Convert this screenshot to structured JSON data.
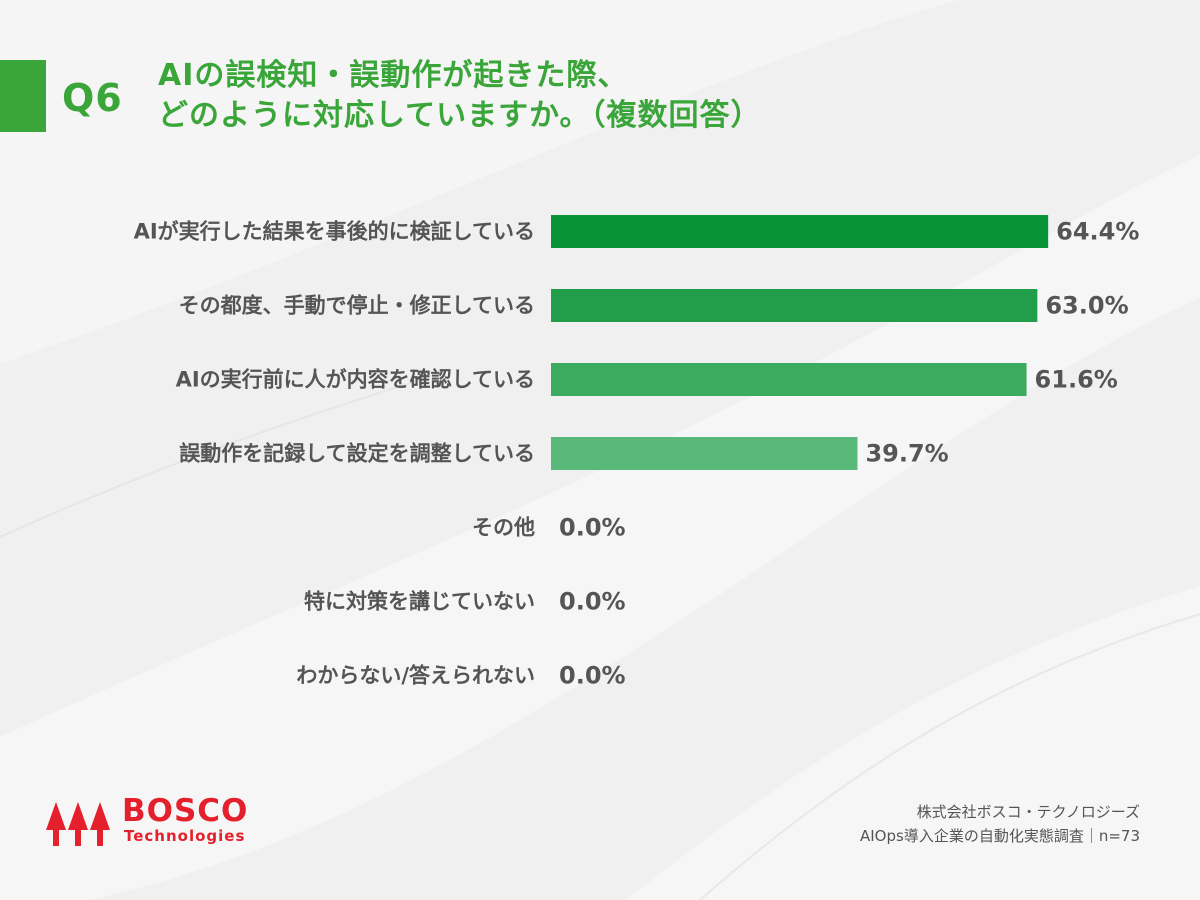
{
  "colors": {
    "accent": "#3aa63a",
    "bar_1": "#0a9336",
    "bar_2": "#229e4a",
    "bar_3": "#3cab60",
    "bar_4": "#58b97a",
    "text_dark": "#555555",
    "brand_red": "#e4202c"
  },
  "question": {
    "number": "Q6",
    "line1": "AIの誤検知・誤動作が起きた際、",
    "line2": "どのように対応していますか。（複数回答）"
  },
  "chart_data": {
    "type": "bar",
    "orientation": "horizontal",
    "categories": [
      "AIが実行した結果を事後的に検証している",
      "その都度、手動で停止・修正している",
      "AIの実行前に人が内容を確認している",
      "誤動作を記録して設定を調整している",
      "その他",
      "特に対策を講じていない",
      "わからない/答えられない"
    ],
    "values": [
      64.4,
      63.0,
      61.6,
      39.7,
      0.0,
      0.0,
      0.0
    ],
    "value_labels": [
      "64.4%",
      "63.0%",
      "61.6%",
      "39.7%",
      "0.0%",
      "0.0%",
      "0.0%"
    ],
    "unit": "%",
    "xlim": [
      0,
      100
    ],
    "grid": false,
    "legend": "none"
  },
  "logo": {
    "name": "BOSCO",
    "sub": "Technologies"
  },
  "footer": {
    "company": "株式会社ボスコ・テクノロジーズ",
    "survey": "AIOps導入企業の自動化実態調査｜n=73"
  }
}
